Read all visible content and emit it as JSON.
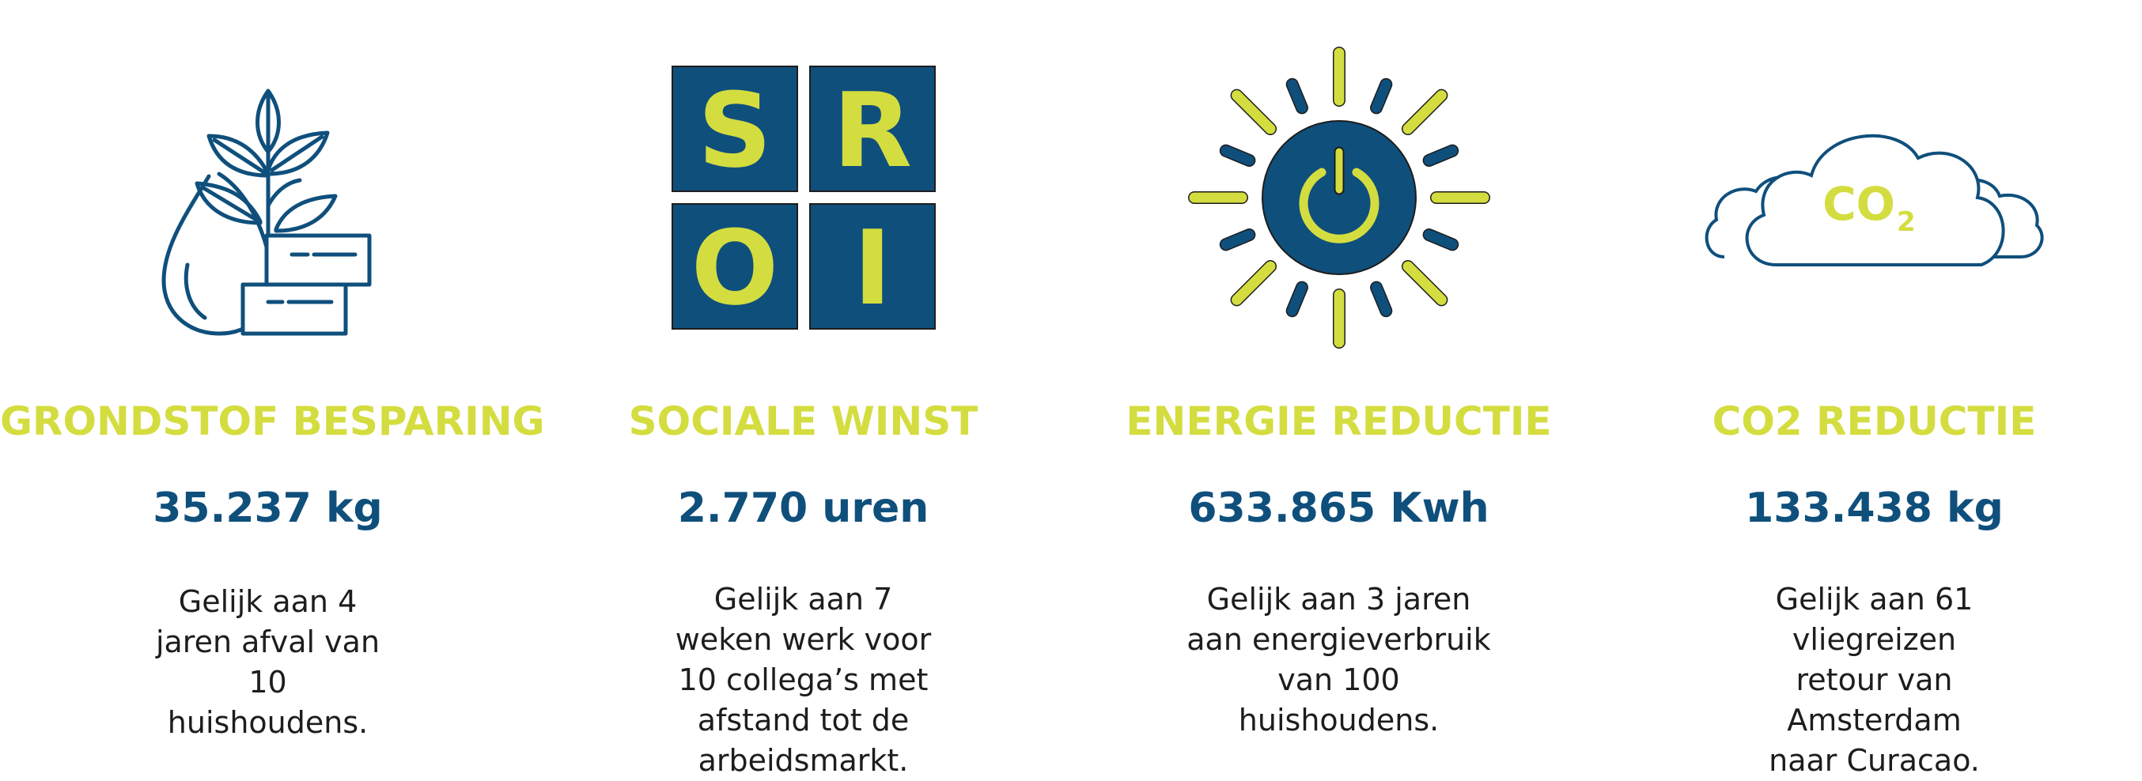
{
  "colors": {
    "accent_yellow": "#d4dd3f",
    "brand_blue": "#0f4f7c",
    "text_dark": "#1d1d1d"
  },
  "items": [
    {
      "icon": "plant-water-drop-icon",
      "title": "GRONDSTOF BESPARING",
      "value": "35.237 kg",
      "description": "Gelijk aan 4 jaren afval van 10 huishoudens."
    },
    {
      "icon": "sroi-tiles-icon",
      "icon_letters": [
        "S",
        "R",
        "O",
        "I"
      ],
      "title": "SOCIALE WINST",
      "value": "2.770 uren",
      "description": "Gelijk aan 7 weken werk voor 10 collega’s met afstand tot de arbeidsmarkt."
    },
    {
      "icon": "sun-power-icon",
      "title": "ENERGIE REDUCTIE",
      "value": "633.865 Kwh",
      "description": "Gelijk aan 3 jaren aan energieverbruik van 100 huishoudens."
    },
    {
      "icon": "co2-cloud-icon",
      "icon_text": "CO",
      "icon_subscript": "2",
      "title": "CO2 REDUCTIE",
      "value": "133.438 kg",
      "description": "Gelijk aan 61 vliegreizen retour van Amsterdam naar Curacao."
    }
  ]
}
